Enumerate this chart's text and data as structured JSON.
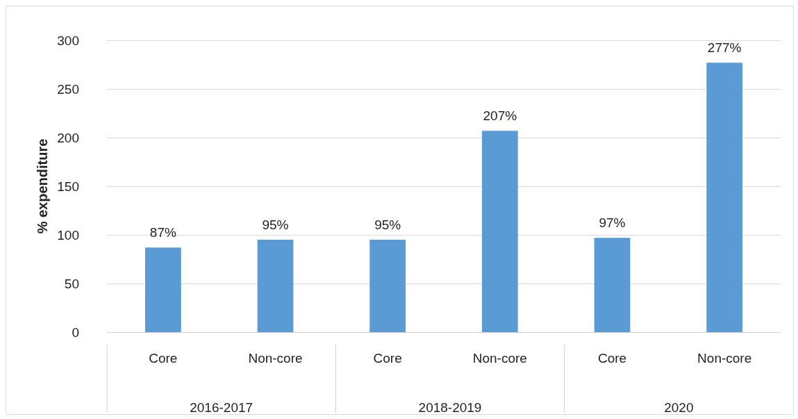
{
  "chart_data": {
    "type": "bar",
    "ylabel": "% expenditure",
    "categories": [
      "Core",
      "Non-core",
      "Core",
      "Non-core",
      "Core",
      "Non-core"
    ],
    "values": [
      87,
      95,
      95,
      207,
      97,
      277
    ],
    "value_labels": [
      "87%",
      "95%",
      "95%",
      "207%",
      "97%",
      "277%"
    ],
    "color": "#5b9bd5",
    "ylim": [
      0,
      300
    ],
    "yticks": [
      0,
      50,
      100,
      150,
      200,
      250,
      300
    ],
    "grid": "y",
    "annotations": [
      "2016-2017",
      "2018-2019",
      "2020"
    ]
  }
}
